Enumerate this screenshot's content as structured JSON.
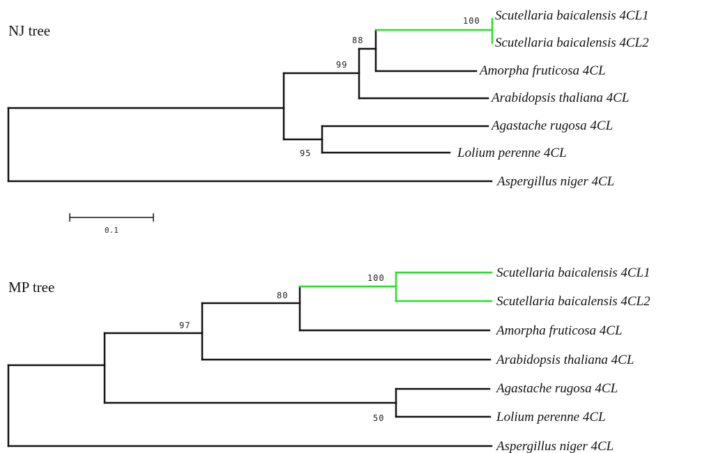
{
  "nj_tree": {
    "title": "NJ tree",
    "taxa": [
      "Scutellaria baicalensis 4CL1",
      "Scutellaria baicalensis 4CL2",
      "Amorpha fruticosa 4CL",
      "Arabidopsis thaliana 4CL",
      "Agastache rugosa 4CL",
      "Lolium perenne 4CL",
      "Aspergillus niger 4CL"
    ],
    "bootstrap": [
      "100",
      "88",
      "99",
      "95"
    ],
    "highlight_color": "#22e322",
    "branch_color": "#111111"
  },
  "scale_bar": {
    "label": "0.1"
  },
  "mp_tree": {
    "title": "MP tree",
    "taxa": [
      "Scutellaria baicalensis 4CL1",
      "Scutellaria baicalensis 4CL2",
      "Amorpha fruticosa 4CL",
      "Arabidopsis thaliana 4CL",
      "Agastache rugosa 4CL",
      "Lolium perenne 4CL",
      "Aspergillus niger 4CL"
    ],
    "bootstrap": [
      "100",
      "80",
      "97",
      "50"
    ],
    "highlight_color": "#22e322",
    "branch_color": "#111111"
  }
}
